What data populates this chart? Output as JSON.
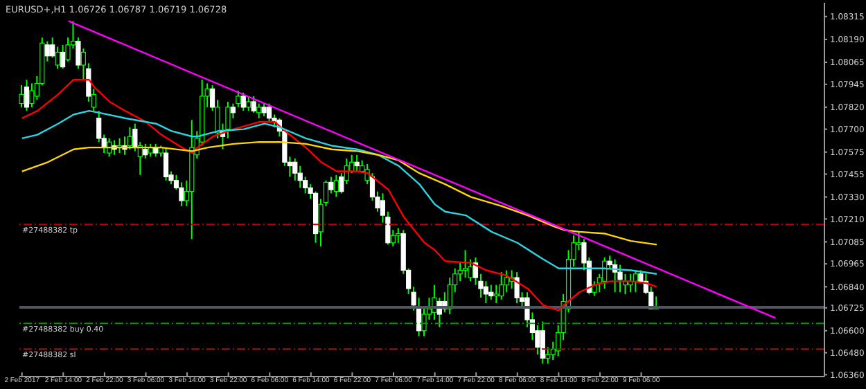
{
  "chart_data": {
    "type": "candlestick",
    "title": "EURUSD+,H1  1.06726 1.06787 1.06719 1.06728",
    "color": "#00ff00",
    "colors": [
      "#00ff00",
      "#ffffff",
      "#00ff00",
      "#00ff00",
      "#00ff00",
      "#ffffff",
      "#ffffff",
      "#00ff00",
      "#ffffff",
      "#00ff00",
      "#00ff00",
      "#ffffff",
      "#00ff00",
      "#ffffff",
      "#00ff00",
      "#ffffff",
      "#ffffff",
      "#00ff00",
      "#ffffff",
      "#00ff00",
      "#ffffff",
      "#00ff00",
      "#ffffff",
      "#00ff00",
      "#ffffff",
      "#00ff00",
      "#ffffff",
      "#00ff00",
      "#ffffff",
      "#ffffff",
      "#ffffff",
      "#ffffff",
      "#00ff00",
      "#00ff00",
      "#00ff00",
      "#00ff00",
      "#00ff00",
      "#ffffff",
      "#00ff00",
      "#ffffff",
      "#00ff00",
      "#ffffff",
      "#00ff00",
      "#ffffff",
      "#00ff00",
      "#ffffff",
      "#00ff00",
      "#ffffff",
      "#ffffff",
      "#ffffff",
      "#ffffff",
      "#ffffff",
      "#ffffff",
      "#ffffff",
      "#ffffff",
      "#ffffff",
      "#ffffff",
      "#ffffff",
      "#00ff00",
      "#00ff00",
      "#ffffff",
      "#00ff00",
      "#ffffff",
      "#00ff00",
      "#00ff00",
      "#ffffff",
      "#00ff00",
      "#00ff00",
      "#ffffff",
      "#ffffff",
      "#ffffff",
      "#ffffff",
      "#00ff00",
      "#00ff00",
      "#ffffff",
      "#ffffff",
      "#ffffff",
      "#ffffff",
      "#00ff00",
      "#00ff00",
      "#00ff00",
      "#ffffff",
      "#ffffff",
      "#00ff00",
      "#00ff00",
      "#00ff00",
      "#00ff00",
      "#00ff00",
      "#ffffff",
      "#ffffff",
      "#ffffff",
      "#ffffff",
      "#00ff00",
      "#00ff00",
      "#00ff00",
      "#00ff00",
      "#ffffff",
      "#ffffff",
      "#ffffff",
      "#ffffff",
      "#ffffff",
      "#ffffff",
      "#00ff00",
      "#00ff00",
      "#00ff00",
      "#00ff00",
      "#00ff00",
      "#00ff00",
      "#00ff00",
      "#ffffff",
      "#ffffff",
      "#00ff00",
      "#00ff00",
      "#00ff00",
      "#ffffff",
      "#ffffff",
      "#ffffff",
      "#00ff00",
      "#00ff00",
      "#00ff00",
      "#ffffff",
      "#ffffff",
      "#ffffff",
      "#00ff00",
      null,
      null,
      null,
      null,
      null,
      null,
      null,
      null,
      null,
      null,
      null,
      null,
      null,
      null,
      null,
      null,
      null,
      null,
      null,
      null,
      null,
      null,
      null,
      null,
      null,
      null,
      null,
      null,
      null,
      null,
      null,
      null
    ],
    "categories": [
      "2 Feb 2017",
      null,
      null,
      null,
      null,
      null,
      null,
      null,
      "2 Feb 14:00",
      null,
      null,
      null,
      null,
      null,
      null,
      null,
      "2 Feb 22:00",
      null,
      null,
      null,
      null,
      null,
      null,
      null,
      "3 Feb 06:00",
      null,
      null,
      null,
      null,
      null,
      null,
      null,
      "3 Feb 14:00",
      null,
      null,
      null,
      null,
      null,
      null,
      null,
      "3 Feb 22:00",
      null,
      null,
      null,
      null,
      null,
      null,
      null,
      "6 Feb 06:00",
      null,
      null,
      null,
      null,
      null,
      null,
      null,
      "6 Feb 14:00",
      null,
      null,
      null,
      null,
      null,
      null,
      null,
      "6 Feb 22:00",
      null,
      null,
      null,
      null,
      null,
      null,
      null,
      "7 Feb 06:00",
      null,
      null,
      null,
      null,
      null,
      null,
      null,
      "7 Feb 14:00",
      null,
      null,
      null,
      null,
      null,
      null,
      null,
      "7 Feb 22:00",
      null,
      null,
      null,
      null,
      null,
      null,
      null,
      "8 Feb 06:00",
      null,
      null,
      null,
      null,
      null,
      null,
      null,
      "8 Feb 14:00",
      null,
      null,
      null,
      null,
      null,
      null,
      null,
      "8 Feb 22:00",
      null,
      null,
      null,
      null,
      null,
      null,
      null,
      "9 Feb 06:00",
      null,
      null,
      null,
      null,
      null,
      null,
      null,
      null,
      null,
      null,
      null,
      null,
      null,
      null,
      null,
      null,
      null,
      null,
      null,
      null,
      null,
      null,
      null,
      null,
      null,
      null,
      null,
      null,
      null,
      null,
      null,
      null,
      null,
      null,
      null
    ],
    "ohlc": [
      [
        1.0784,
        1.0794,
        1.0782,
        1.0789
      ],
      [
        1.0793,
        1.0797,
        1.078,
        1.0782
      ],
      [
        1.0784,
        1.0795,
        1.0782,
        1.0791
      ],
      [
        1.0788,
        1.0799,
        1.0786,
        1.0795
      ],
      [
        1.0795,
        1.082,
        1.0794,
        1.0817
      ],
      [
        1.0816,
        1.0818,
        1.0807,
        1.081
      ],
      [
        1.0816,
        1.082,
        1.0809,
        1.081
      ],
      [
        1.0805,
        1.0815,
        1.0803,
        1.0812
      ],
      [
        1.0812,
        1.0816,
        1.0803,
        1.0804
      ],
      [
        1.0808,
        1.082,
        1.0807,
        1.0816
      ],
      [
        1.0816,
        1.0829,
        1.0814,
        1.0818
      ],
      [
        1.0818,
        1.082,
        1.0803,
        1.0805
      ],
      [
        1.0805,
        1.0814,
        1.0797,
        1.0812
      ],
      [
        1.0803,
        1.0806,
        1.0785,
        1.0788
      ],
      [
        1.0782,
        1.0792,
        1.078,
        1.0789
      ],
      [
        1.0776,
        1.078,
        1.0763,
        1.0765
      ],
      [
        1.0765,
        1.0767,
        1.0757,
        1.076
      ],
      [
        1.0757,
        1.0765,
        1.0755,
        1.0763
      ],
      [
        1.0761,
        1.0764,
        1.0756,
        1.0759
      ],
      [
        1.076,
        1.0765,
        1.0757,
        1.0761
      ],
      [
        1.0761,
        1.0766,
        1.0756,
        1.0759
      ],
      [
        1.0761,
        1.0771,
        1.0759,
        1.0766
      ],
      [
        1.077,
        1.0773,
        1.0758,
        1.076
      ],
      [
        1.0755,
        1.0763,
        1.0745,
        1.0761
      ],
      [
        1.0759,
        1.0762,
        1.0754,
        1.0756
      ],
      [
        1.0757,
        1.0762,
        1.0755,
        1.076
      ],
      [
        1.076,
        1.0762,
        1.0755,
        1.0757
      ],
      [
        1.0757,
        1.0761,
        1.0755,
        1.076
      ],
      [
        1.0757,
        1.076,
        1.0742,
        1.0744
      ],
      [
        1.0745,
        1.0747,
        1.074,
        1.0742
      ],
      [
        1.0742,
        1.0745,
        1.0737,
        1.0738
      ],
      [
        1.0738,
        1.0741,
        1.0728,
        1.0731
      ],
      [
        1.0731,
        1.0742,
        1.0728,
        1.0736
      ],
      [
        1.0736,
        1.0775,
        1.071,
        1.076
      ],
      [
        1.0756,
        1.0769,
        1.0754,
        1.0765
      ],
      [
        1.0763,
        1.0797,
        1.0761,
        1.0788
      ],
      [
        1.0788,
        1.0795,
        1.0782,
        1.0792
      ],
      [
        1.0792,
        1.0794,
        1.078,
        1.0782
      ],
      [
        1.0768,
        1.0786,
        1.0765,
        1.0782
      ],
      [
        1.0769,
        1.0773,
        1.0759,
        1.0766
      ],
      [
        1.077,
        1.0785,
        1.0765,
        1.0782
      ],
      [
        1.0782,
        1.0784,
        1.0776,
        1.0779
      ],
      [
        1.0784,
        1.0791,
        1.0782,
        1.0788
      ],
      [
        1.0788,
        1.079,
        1.078,
        1.0782
      ],
      [
        1.0782,
        1.0788,
        1.078,
        1.0785
      ],
      [
        1.0785,
        1.0788,
        1.0779,
        1.078
      ],
      [
        1.0779,
        1.0784,
        1.0776,
        1.0782
      ],
      [
        1.0782,
        1.0784,
        1.0777,
        1.0779
      ],
      [
        1.0782,
        1.0784,
        1.0774,
        1.0776
      ],
      [
        1.0776,
        1.0778,
        1.0771,
        1.0774
      ],
      [
        1.0775,
        1.0776,
        1.0766,
        1.0769
      ],
      [
        1.0769,
        1.077,
        1.075,
        1.0752
      ],
      [
        1.0752,
        1.0755,
        1.0744,
        1.075
      ],
      [
        1.0752,
        1.0754,
        1.0742,
        1.0746
      ],
      [
        1.0746,
        1.075,
        1.0738,
        1.0742
      ],
      [
        1.0742,
        1.0744,
        1.0735,
        1.0738
      ],
      [
        1.0738,
        1.074,
        1.0732,
        1.0735
      ],
      [
        1.0735,
        1.0736,
        1.0708,
        1.0713
      ],
      [
        1.0714,
        1.0732,
        1.0706,
        1.0729
      ],
      [
        1.073,
        1.0742,
        1.0728,
        1.0741
      ],
      [
        1.0741,
        1.0744,
        1.0735,
        1.0737
      ],
      [
        1.0736,
        1.0745,
        1.0733,
        1.0742
      ],
      [
        1.0744,
        1.0746,
        1.0735,
        1.0736
      ],
      [
        1.0742,
        1.0754,
        1.074,
        1.075
      ],
      [
        1.0747,
        1.0756,
        1.0746,
        1.0752
      ],
      [
        1.0752,
        1.0756,
        1.0747,
        1.075
      ],
      [
        1.0747,
        1.0753,
        1.0746,
        1.075
      ],
      [
        1.0742,
        1.0751,
        1.074,
        1.0748
      ],
      [
        1.0744,
        1.0746,
        1.0731,
        1.0733
      ],
      [
        1.0733,
        1.0736,
        1.0725,
        1.0727
      ],
      [
        1.0731,
        1.0735,
        1.0719,
        1.0723
      ],
      [
        1.0722,
        1.0725,
        1.0707,
        1.0708
      ],
      [
        1.0708,
        1.0715,
        1.0706,
        1.0712
      ],
      [
        1.0712,
        1.0716,
        1.0708,
        1.0713
      ],
      [
        1.0713,
        1.0715,
        1.0691,
        1.0693
      ],
      [
        1.0693,
        1.0694,
        1.068,
        1.0683
      ],
      [
        1.0681,
        1.0684,
        1.0671,
        1.0674
      ],
      [
        1.0672,
        1.0678,
        1.0657,
        1.066
      ],
      [
        1.066,
        1.0672,
        1.0657,
        1.0669
      ],
      [
        1.0669,
        1.0678,
        1.0666,
        1.0672
      ],
      [
        1.067,
        1.0685,
        1.0666,
        1.0678
      ],
      [
        1.0676,
        1.0678,
        1.0662,
        1.0669
      ],
      [
        1.0676,
        1.0681,
        1.067,
        1.0672
      ],
      [
        1.0672,
        1.0689,
        1.0669,
        1.0685
      ],
      [
        1.0685,
        1.0694,
        1.0681,
        1.0691
      ],
      [
        1.0691,
        1.0697,
        1.0687,
        1.0693
      ],
      [
        1.0693,
        1.0704,
        1.0689,
        1.0694
      ],
      [
        1.0689,
        1.0699,
        1.0687,
        1.0695
      ],
      [
        1.0697,
        1.07,
        1.0685,
        1.0689
      ],
      [
        1.0687,
        1.0691,
        1.0678,
        1.0683
      ],
      [
        1.0684,
        1.0687,
        1.0675,
        1.068
      ],
      [
        1.0681,
        1.0685,
        1.0677,
        1.0679
      ],
      [
        1.0679,
        1.0685,
        1.0675,
        1.068
      ],
      [
        1.0679,
        1.0692,
        1.0677,
        1.0685
      ],
      [
        1.0685,
        1.0693,
        1.0681,
        1.0689
      ],
      [
        1.0687,
        1.0693,
        1.0683,
        1.0689
      ],
      [
        1.0689,
        1.0692,
        1.0675,
        1.0678
      ],
      [
        1.0678,
        1.0681,
        1.0673,
        1.0676
      ],
      [
        1.0678,
        1.0681,
        1.0662,
        1.0666
      ],
      [
        1.0666,
        1.067,
        1.0655,
        1.0659
      ],
      [
        1.066,
        1.0663,
        1.0647,
        1.0651
      ],
      [
        1.066,
        1.0665,
        1.0642,
        1.0645
      ],
      [
        1.0645,
        1.0651,
        1.0642,
        1.0647
      ],
      [
        1.0647,
        1.0654,
        1.0644,
        1.065
      ],
      [
        1.0649,
        1.0663,
        1.0646,
        1.0659
      ],
      [
        1.0659,
        1.068,
        1.0655,
        1.0676
      ],
      [
        1.0672,
        1.0704,
        1.067,
        1.0699
      ],
      [
        1.0699,
        1.0712,
        1.0695,
        1.0708
      ],
      [
        1.0707,
        1.0714,
        1.0704,
        1.0708
      ],
      [
        1.0708,
        1.071,
        1.0693,
        1.0697
      ],
      [
        1.0698,
        1.07,
        1.068,
        1.0681
      ],
      [
        1.0681,
        1.0687,
        1.0679,
        1.0685
      ],
      [
        1.0686,
        1.0691,
        1.0681,
        1.0689
      ],
      [
        1.0687,
        1.07,
        1.0683,
        1.0698
      ],
      [
        1.0698,
        1.0701,
        1.0694,
        1.0696
      ],
      [
        1.0696,
        1.0699,
        1.0681,
        1.0692
      ],
      [
        1.0692,
        1.0696,
        1.0681,
        1.0688
      ],
      [
        1.0685,
        1.0691,
        1.068,
        1.0687
      ],
      [
        1.0685,
        1.0691,
        1.0681,
        1.0687
      ],
      [
        1.0687,
        1.0693,
        1.0681,
        1.0691
      ],
      [
        1.0691,
        1.0693,
        1.0686,
        1.0687
      ],
      [
        1.0687,
        1.0691,
        1.068,
        1.0681
      ],
      [
        1.0681,
        1.0684,
        1.0672,
        1.0672
      ],
      [
        1.06726,
        1.06787,
        1.06719,
        1.06728
      ],
      null,
      null,
      null,
      null,
      null,
      null,
      null,
      null,
      null,
      null,
      null,
      null,
      null,
      null,
      null,
      null,
      null,
      null,
      null,
      null,
      null,
      null,
      null,
      null,
      null,
      null,
      null,
      null,
      null,
      null,
      null,
      null
    ],
    "series": [
      {
        "type": "line",
        "color": "#ff0000",
        "values": [
          1.0776,
          null,
          null,
          1.078,
          null,
          null,
          null,
          1.0789,
          null,
          null,
          1.0797,
          null,
          null,
          1.0797,
          1.0793,
          null,
          null,
          1.0785,
          null,
          null,
          1.078,
          null,
          null,
          null,
          1.0774,
          null,
          null,
          1.0767,
          null,
          null,
          null,
          1.076,
          null,
          1.0757,
          1.076,
          null,
          null,
          1.0766,
          null,
          null,
          null,
          1.077,
          null,
          null,
          null,
          null,
          1.0774,
          null,
          null,
          1.0774,
          null,
          1.0769,
          null,
          null,
          null,
          1.076,
          null,
          null,
          1.0752,
          null,
          null,
          1.0747,
          null,
          null,
          null,
          1.0747,
          null,
          1.0746,
          null,
          null,
          null,
          1.0737,
          null,
          null,
          1.0722,
          null,
          null,
          null,
          1.0708,
          null,
          1.0704,
          null,
          1.0698,
          null,
          null,
          null,
          null,
          1.0697,
          null,
          null,
          1.0693,
          null,
          null,
          null,
          1.069,
          null,
          null,
          null,
          1.0683,
          null,
          null,
          1.0674,
          null,
          null,
          1.0671,
          1.0674,
          null,
          null,
          1.0681,
          null,
          null,
          1.0685,
          null,
          null,
          1.0687,
          null,
          null,
          null,
          1.0687,
          null,
          null,
          1.0686,
          null,
          1.0684,
          null,
          null,
          null,
          null,
          null,
          null,
          null,
          null,
          null,
          null,
          null,
          null,
          null,
          null,
          null,
          null,
          null,
          null,
          null,
          null,
          null,
          null,
          null,
          null,
          null,
          null,
          null,
          null,
          null,
          null,
          null,
          null
        ]
      },
      {
        "type": "line",
        "color": "#2ad4e0",
        "values": [
          1.0765,
          null,
          null,
          1.0767,
          null,
          null,
          null,
          1.0773,
          null,
          null,
          1.0778,
          null,
          null,
          1.078,
          null,
          1.0779,
          null,
          null,
          null,
          null,
          1.0776,
          null,
          null,
          null,
          null,
          null,
          1.0773,
          null,
          null,
          1.0769,
          null,
          null,
          null,
          1.0766,
          1.0766,
          null,
          null,
          null,
          1.0769,
          null,
          null,
          null,
          null,
          1.077,
          null,
          null,
          null,
          1.0773,
          null,
          null,
          1.0771,
          null,
          null,
          null,
          null,
          1.0765,
          null,
          null,
          null,
          null,
          1.0761,
          null,
          null,
          null,
          null,
          1.0759,
          null,
          null,
          null,
          1.0756,
          null,
          null,
          null,
          1.075,
          null,
          null,
          null,
          1.074,
          null,
          null,
          1.0729,
          null,
          1.0725,
          null,
          null,
          null,
          1.0723,
          null,
          null,
          null,
          null,
          1.0714,
          null,
          null,
          null,
          null,
          1.0708,
          null,
          null,
          null,
          null,
          1.0699,
          null,
          null,
          1.0694,
          null,
          null,
          null,
          1.0694,
          null,
          null,
          null,
          null,
          1.0694,
          null,
          null,
          null,
          null,
          1.0693,
          null,
          null,
          null,
          null,
          1.0691,
          null,
          null,
          null,
          null,
          null,
          null,
          null,
          null,
          null,
          null,
          null,
          null,
          null,
          null,
          null,
          null,
          null,
          null,
          null,
          null,
          null,
          null,
          null,
          null,
          null,
          null,
          null,
          null,
          null,
          null,
          null,
          null
        ]
      },
      {
        "type": "line",
        "color": "#ffd700",
        "values": [
          1.0747,
          null,
          null,
          null,
          null,
          1.0752,
          null,
          null,
          null,
          null,
          1.0759,
          null,
          null,
          1.076,
          null,
          null,
          null,
          null,
          null,
          null,
          1.076,
          null,
          null,
          null,
          null,
          null,
          null,
          1.076,
          null,
          null,
          null,
          null,
          null,
          1.0758,
          null,
          null,
          1.076,
          null,
          null,
          null,
          null,
          1.0762,
          null,
          null,
          null,
          null,
          1.0763,
          null,
          null,
          null,
          1.0763,
          null,
          null,
          null,
          null,
          1.0762,
          null,
          null,
          null,
          null,
          1.0759,
          null,
          null,
          null,
          null,
          1.0758,
          null,
          null,
          null,
          1.0756,
          null,
          null,
          null,
          1.0753,
          null,
          null,
          null,
          1.0746,
          null,
          null,
          null,
          null,
          1.074,
          null,
          null,
          null,
          null,
          1.0733,
          null,
          null,
          null,
          null,
          null,
          1.0728,
          null,
          null,
          null,
          null,
          1.0723,
          null,
          null,
          null,
          null,
          1.0717,
          null,
          1.0715,
          null,
          null,
          1.0714,
          null,
          null,
          null,
          null,
          1.0713,
          null,
          null,
          null,
          null,
          1.0709,
          null,
          null,
          null,
          null,
          1.0707,
          null,
          null,
          null,
          null,
          null,
          null,
          null,
          null,
          null,
          null,
          null,
          null,
          null,
          null,
          null,
          null,
          null,
          null,
          null,
          null,
          null,
          null,
          null,
          null,
          null,
          null,
          null,
          null,
          null,
          null,
          null,
          null
        ]
      },
      {
        "type": "line",
        "color": "#ff00ff",
        "values": [
          null,
          null,
          null,
          null,
          null,
          null,
          null,
          null,
          null,
          1.0829,
          null,
          null,
          null,
          null,
          null,
          null,
          null,
          null,
          null,
          null,
          null,
          null,
          null,
          null,
          null,
          null,
          null,
          null,
          null,
          null,
          null,
          null,
          null,
          null,
          null,
          null,
          null,
          null,
          null,
          null,
          null,
          null,
          null,
          null,
          null,
          null,
          null,
          null,
          null,
          null,
          null,
          null,
          null,
          null,
          null,
          null,
          null,
          null,
          null,
          null,
          null,
          null,
          null,
          null,
          null,
          null,
          null,
          null,
          null,
          null,
          null,
          null,
          null,
          null,
          null,
          null,
          null,
          null,
          null,
          null,
          null,
          null,
          null,
          null,
          null,
          null,
          null,
          null,
          null,
          null,
          null,
          null,
          null,
          null,
          null,
          null,
          null,
          null,
          null,
          null,
          null,
          null,
          null,
          null,
          null,
          null,
          null,
          null,
          null,
          null,
          null,
          null,
          null,
          null,
          null,
          null,
          null,
          null,
          null,
          null,
          null,
          null,
          null,
          null,
          null,
          null,
          null,
          null,
          null,
          null,
          null,
          null,
          null,
          null,
          null,
          null,
          null,
          null,
          null,
          null,
          null,
          null,
          null,
          null,
          null,
          null,
          1.0667,
          null,
          null,
          null,
          null,
          null,
          null,
          null,
          null,
          null
        ]
      }
    ],
    "ref_lines": [
      {
        "axis": "y",
        "value": 1.0718,
        "label": "#27488382 tp",
        "color": "#c00000",
        "line_style": "dashdot"
      },
      {
        "axis": "y",
        "value": 1.0664,
        "label": "#27488382 buy 0.40",
        "color": "#00a000",
        "line_style": "dashdot"
      },
      {
        "axis": "y",
        "value": 1.065,
        "label": "#27488382 sl",
        "color": "#c00000",
        "line_style": "dashdot"
      },
      {
        "axis": "y",
        "value": 1.06728,
        "label": null,
        "color": "#505560",
        "line_style": "solid"
      }
    ],
    "ylim": [
      1.0635,
      1.0839
    ],
    "yticks": [
      {
        "value": 1.08315,
        "label": "1.08315"
      },
      {
        "value": 1.0819,
        "label": "1.08190"
      },
      {
        "value": 1.08065,
        "label": "1.08065"
      },
      {
        "value": 1.07945,
        "label": "1.07945"
      },
      {
        "value": 1.0782,
        "label": "1.07820"
      },
      {
        "value": 1.077,
        "label": "1.07700"
      },
      {
        "value": 1.07575,
        "label": "1.07575"
      },
      {
        "value": 1.07455,
        "label": "1.07455"
      },
      {
        "value": 1.0733,
        "label": "1.07330"
      },
      {
        "value": 1.0721,
        "label": "1.07210"
      },
      {
        "value": 1.07085,
        "label": "1.07085"
      },
      {
        "value": 1.06965,
        "label": "1.06965"
      },
      {
        "value": 1.0684,
        "label": "1.06840"
      },
      {
        "value": 1.06725,
        "label": "1.06725"
      },
      {
        "value": 1.066,
        "label": "1.06600"
      },
      {
        "value": 1.0648,
        "label": "1.06480"
      },
      {
        "value": 1.0636,
        "label": "1.06360"
      }
    ]
  }
}
